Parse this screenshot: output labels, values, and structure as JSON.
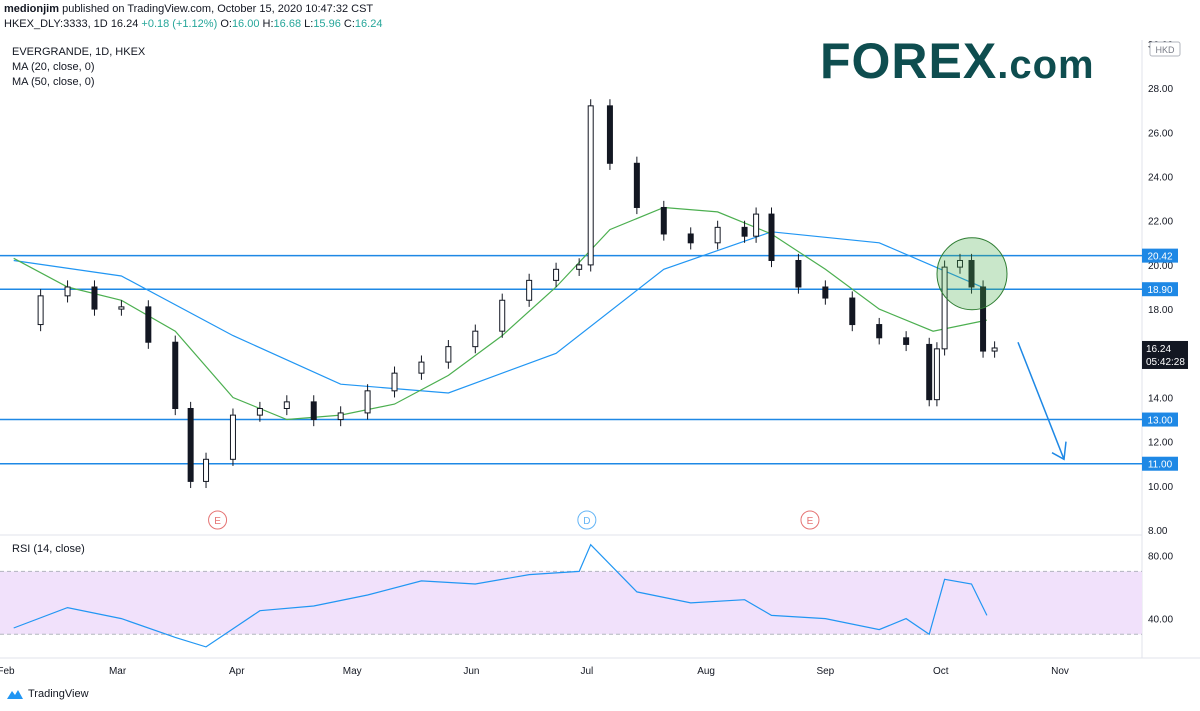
{
  "header": {
    "publisher": "medionjim",
    "published_text": "published on TradingView.com, October 15, 2020 10:47:32 CST",
    "symbol": "HKEX_DLY:3333, 1D",
    "last": "16.24",
    "change": "+0.18 (+1.12%)",
    "o_label": "O:",
    "o_val": "16.00",
    "h_label": "H:",
    "h_val": "16.68",
    "l_label": "L:",
    "l_val": "15.96",
    "c_label": "C:",
    "c_val": "16.24"
  },
  "legend": {
    "title": "EVERGRANDE, 1D, HKEX",
    "ma20": "MA (20, close, 0)",
    "ma50": "MA (50, close, 0)",
    "rsi": "RSI (14, close)"
  },
  "logo": {
    "text_main": "FOREX",
    "text_dot": ".com",
    "tradingview": "TradingView"
  },
  "colors": {
    "up": "#131722",
    "down": "#131722",
    "ma20": "#4caf50",
    "ma50": "#2196f3",
    "level_line": "#1e88e5",
    "rsi_line": "#2196f3",
    "rsi_band": "#f1e1fb",
    "earnings": "#e57373",
    "dividend": "#64b5f6",
    "price_label_bg": "#131722"
  },
  "chart_data": {
    "type": "candlestick",
    "currency": "HKD",
    "ylim": [
      8.0,
      30.0
    ],
    "yticks": [
      "30.00",
      "28.00",
      "26.00",
      "24.00",
      "22.00",
      "20.00",
      "18.00",
      "14.00",
      "12.00",
      "10.00",
      "8.00"
    ],
    "xticks": [
      {
        "label": "Feb",
        "date": "2020-02-01"
      },
      {
        "label": "Mar",
        "date": "2020-03-01"
      },
      {
        "label": "Apr",
        "date": "2020-04-01"
      },
      {
        "label": "May",
        "date": "2020-05-01"
      },
      {
        "label": "Jun",
        "date": "2020-06-01"
      },
      {
        "label": "Jul",
        "date": "2020-07-01"
      },
      {
        "label": "Aug",
        "date": "2020-08-01"
      },
      {
        "label": "Sep",
        "date": "2020-09-01"
      },
      {
        "label": "Oct",
        "date": "2020-10-01"
      },
      {
        "label": "Nov",
        "date": "2020-11-01"
      }
    ],
    "horizontal_levels": [
      {
        "value": 20.42,
        "label": "20.42"
      },
      {
        "value": 18.9,
        "label": "18.90"
      },
      {
        "value": 13.0,
        "label": "13.00"
      },
      {
        "value": 11.0,
        "label": "11.00"
      }
    ],
    "current_price": {
      "value": 16.24,
      "label": "16.24",
      "countdown": "05:42:28"
    },
    "events": [
      {
        "type": "E",
        "date": "2020-03-27"
      },
      {
        "type": "D",
        "date": "2020-07-01"
      },
      {
        "type": "E",
        "date": "2020-08-28"
      }
    ],
    "close_series": [
      {
        "date": "2020-02-03",
        "close": 17.3
      },
      {
        "date": "2020-02-10",
        "close": 18.6
      },
      {
        "date": "2020-02-17",
        "close": 19.0
      },
      {
        "date": "2020-02-24",
        "close": 18.0
      },
      {
        "date": "2020-03-02",
        "close": 18.1
      },
      {
        "date": "2020-03-09",
        "close": 16.5
      },
      {
        "date": "2020-03-16",
        "close": 13.5
      },
      {
        "date": "2020-03-20",
        "close": 10.2
      },
      {
        "date": "2020-03-24",
        "close": 11.2
      },
      {
        "date": "2020-03-31",
        "close": 13.2
      },
      {
        "date": "2020-04-07",
        "close": 13.5
      },
      {
        "date": "2020-04-14",
        "close": 13.8
      },
      {
        "date": "2020-04-21",
        "close": 13.0
      },
      {
        "date": "2020-04-28",
        "close": 13.3
      },
      {
        "date": "2020-05-05",
        "close": 14.3
      },
      {
        "date": "2020-05-12",
        "close": 15.1
      },
      {
        "date": "2020-05-19",
        "close": 15.6
      },
      {
        "date": "2020-05-26",
        "close": 16.3
      },
      {
        "date": "2020-06-02",
        "close": 17.0
      },
      {
        "date": "2020-06-09",
        "close": 18.4
      },
      {
        "date": "2020-06-16",
        "close": 19.3
      },
      {
        "date": "2020-06-23",
        "close": 19.8
      },
      {
        "date": "2020-06-29",
        "close": 20.0
      },
      {
        "date": "2020-07-02",
        "close": 27.2
      },
      {
        "date": "2020-07-07",
        "close": 24.6
      },
      {
        "date": "2020-07-14",
        "close": 22.6
      },
      {
        "date": "2020-07-21",
        "close": 21.4
      },
      {
        "date": "2020-07-28",
        "close": 21.0
      },
      {
        "date": "2020-08-04",
        "close": 21.7
      },
      {
        "date": "2020-08-11",
        "close": 21.3
      },
      {
        "date": "2020-08-14",
        "close": 22.3
      },
      {
        "date": "2020-08-18",
        "close": 20.2
      },
      {
        "date": "2020-08-25",
        "close": 19.0
      },
      {
        "date": "2020-09-01",
        "close": 18.5
      },
      {
        "date": "2020-09-08",
        "close": 17.3
      },
      {
        "date": "2020-09-15",
        "close": 16.7
      },
      {
        "date": "2020-09-22",
        "close": 16.4
      },
      {
        "date": "2020-09-28",
        "close": 13.9
      },
      {
        "date": "2020-09-30",
        "close": 16.2
      },
      {
        "date": "2020-10-02",
        "close": 19.9
      },
      {
        "date": "2020-10-06",
        "close": 20.2
      },
      {
        "date": "2020-10-09",
        "close": 19.0
      },
      {
        "date": "2020-10-12",
        "close": 16.1
      },
      {
        "date": "2020-10-15",
        "close": 16.24
      }
    ],
    "ma20": [
      {
        "date": "2020-02-03",
        "value": 20.3
      },
      {
        "date": "2020-02-17",
        "value": 19.0
      },
      {
        "date": "2020-03-02",
        "value": 18.4
      },
      {
        "date": "2020-03-16",
        "value": 17.0
      },
      {
        "date": "2020-03-31",
        "value": 14.0
      },
      {
        "date": "2020-04-14",
        "value": 13.0
      },
      {
        "date": "2020-04-28",
        "value": 13.2
      },
      {
        "date": "2020-05-12",
        "value": 13.7
      },
      {
        "date": "2020-05-26",
        "value": 15.0
      },
      {
        "date": "2020-06-09",
        "value": 16.8
      },
      {
        "date": "2020-06-23",
        "value": 19.0
      },
      {
        "date": "2020-07-07",
        "value": 21.6
      },
      {
        "date": "2020-07-21",
        "value": 22.6
      },
      {
        "date": "2020-08-04",
        "value": 22.4
      },
      {
        "date": "2020-08-18",
        "value": 21.4
      },
      {
        "date": "2020-09-01",
        "value": 19.8
      },
      {
        "date": "2020-09-15",
        "value": 18.0
      },
      {
        "date": "2020-09-29",
        "value": 17.0
      },
      {
        "date": "2020-10-13",
        "value": 17.5
      }
    ],
    "ma50": [
      {
        "date": "2020-02-03",
        "value": 20.2
      },
      {
        "date": "2020-03-02",
        "value": 19.5
      },
      {
        "date": "2020-03-31",
        "value": 16.8
      },
      {
        "date": "2020-04-28",
        "value": 14.6
      },
      {
        "date": "2020-05-26",
        "value": 14.2
      },
      {
        "date": "2020-06-23",
        "value": 16.0
      },
      {
        "date": "2020-07-21",
        "value": 19.8
      },
      {
        "date": "2020-08-18",
        "value": 21.5
      },
      {
        "date": "2020-09-15",
        "value": 21.0
      },
      {
        "date": "2020-10-01",
        "value": 19.8
      },
      {
        "date": "2020-10-13",
        "value": 18.9
      }
    ],
    "rsi": {
      "ylim": [
        20,
        90
      ],
      "yticks": [
        "80.00",
        "40.00"
      ],
      "band": [
        30,
        70
      ],
      "values": [
        {
          "date": "2020-02-03",
          "value": 34
        },
        {
          "date": "2020-02-17",
          "value": 47
        },
        {
          "date": "2020-03-02",
          "value": 40
        },
        {
          "date": "2020-03-16",
          "value": 28
        },
        {
          "date": "2020-03-24",
          "value": 22
        },
        {
          "date": "2020-04-07",
          "value": 45
        },
        {
          "date": "2020-04-21",
          "value": 48
        },
        {
          "date": "2020-05-05",
          "value": 55
        },
        {
          "date": "2020-05-19",
          "value": 64
        },
        {
          "date": "2020-06-02",
          "value": 62
        },
        {
          "date": "2020-06-16",
          "value": 68
        },
        {
          "date": "2020-06-29",
          "value": 70
        },
        {
          "date": "2020-07-02",
          "value": 87
        },
        {
          "date": "2020-07-14",
          "value": 57
        },
        {
          "date": "2020-07-28",
          "value": 50
        },
        {
          "date": "2020-08-11",
          "value": 52
        },
        {
          "date": "2020-08-18",
          "value": 42
        },
        {
          "date": "2020-09-01",
          "value": 40
        },
        {
          "date": "2020-09-15",
          "value": 33
        },
        {
          "date": "2020-09-22",
          "value": 40
        },
        {
          "date": "2020-09-28",
          "value": 30
        },
        {
          "date": "2020-10-02",
          "value": 65
        },
        {
          "date": "2020-10-09",
          "value": 62
        },
        {
          "date": "2020-10-13",
          "value": 42
        }
      ]
    }
  }
}
